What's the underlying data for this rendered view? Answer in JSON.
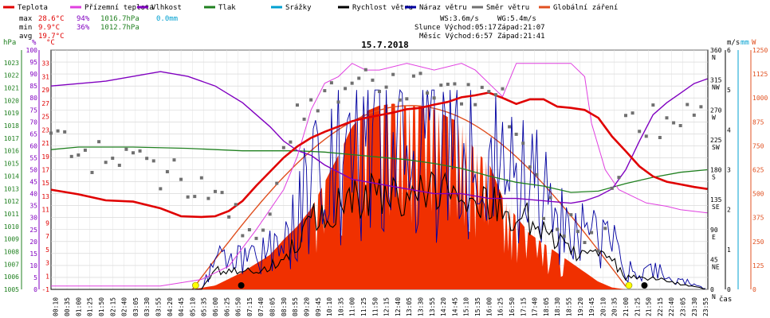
{
  "legend": [
    {
      "key": "teplota",
      "label": "Teplota",
      "color": "#e00000"
    },
    {
      "key": "pocitova",
      "label": "Přízemní teplota",
      "color": "#e040e0"
    },
    {
      "key": "vlhkost",
      "label": "Vlhkost",
      "color": "#8000c0"
    },
    {
      "key": "tlak",
      "label": "Tlak",
      "color": "#208020"
    },
    {
      "key": "srazky",
      "label": "Srážky",
      "color": "#00a0d0"
    },
    {
      "key": "rychlost",
      "label": "Rychlost větru",
      "color": "#000000"
    },
    {
      "key": "naraz",
      "label": "Náraz větru",
      "color": "#0000a0"
    },
    {
      "key": "smer",
      "label": "Směr větru",
      "color": "#707070"
    },
    {
      "key": "zareni",
      "label": "Globální záření",
      "color": "#e05020"
    }
  ],
  "stats": {
    "max": {
      "label": "max",
      "temp": "28.6°C",
      "hum": "94%",
      "press": "1016.7hPa",
      "rain": "0.0mm"
    },
    "min": {
      "label": "min",
      "temp": "9.9°C",
      "hum": "36%",
      "press": "1012.7hPa"
    },
    "avg": {
      "label": "avg",
      "temp": "19.7°C"
    }
  },
  "info": {
    "ws": "WS:3.6m/s",
    "wg": "WG:5.4m/s",
    "sun_row": "Slunce Východ:05:17",
    "sun_set": "Západ:21:07",
    "moon_row": "Měsíc Východ:6:57",
    "moon_set": "Západ:21:41"
  },
  "title": "15.7.2018",
  "axis_units": {
    "hpa": "hPa",
    "pct": "%",
    "degc": "°C",
    "ms": "m/s",
    "mm": "mm",
    "w": "W",
    "cas": "čas"
  },
  "chart_data": {
    "type": "line",
    "title": "15.7.2018",
    "x_ticks": [
      "00:10",
      "00:35",
      "01:00",
      "01:25",
      "01:50",
      "02:15",
      "02:40",
      "03:05",
      "03:30",
      "03:55",
      "04:20",
      "04:45",
      "05:10",
      "05:35",
      "06:00",
      "06:25",
      "06:50",
      "07:15",
      "07:40",
      "08:05",
      "08:30",
      "08:55",
      "09:20",
      "09:45",
      "10:10",
      "10:35",
      "11:00",
      "11:25",
      "11:50",
      "12:15",
      "12:40",
      "13:05",
      "13:30",
      "13:55",
      "14:20",
      "14:45",
      "15:10",
      "15:35",
      "16:00",
      "16:25",
      "16:50",
      "17:15",
      "17:40",
      "18:05",
      "18:30",
      "18:55",
      "19:20",
      "19:45",
      "20:10",
      "20:35",
      "21:00",
      "21:25",
      "21:50",
      "22:15",
      "22:40",
      "23:05",
      "23:30",
      "23:55"
    ],
    "x_label": "čas",
    "axes": {
      "pressure_hpa": {
        "range": [
          1005,
          1024
        ],
        "ticks": [
          1005,
          1006,
          1007,
          1008,
          1009,
          1010,
          1011,
          1012,
          1013,
          1014,
          1015,
          1016,
          1017,
          1018,
          1019,
          1020,
          1021,
          1022,
          1023
        ]
      },
      "humidity_pct": {
        "range": [
          0,
          100
        ],
        "ticks": [
          0,
          5,
          10,
          15,
          20,
          25,
          30,
          35,
          40,
          45,
          50,
          55,
          60,
          65,
          70,
          75,
          80,
          85,
          90,
          95,
          100
        ]
      },
      "temperature_c": {
        "range": [
          -1,
          35
        ],
        "ticks": [
          -1,
          1,
          3,
          5,
          7,
          9,
          11,
          13,
          15,
          17,
          19,
          21,
          23,
          25,
          27,
          29,
          31,
          33
        ]
      },
      "wind_ms": {
        "range": [
          0,
          6
        ],
        "ticks": [
          0,
          1,
          2,
          3,
          4,
          5,
          6
        ]
      },
      "direction_deg": {
        "range": [
          0,
          360
        ],
        "ticks": [
          0,
          45,
          90,
          135,
          180,
          225,
          270,
          315,
          360
        ],
        "tick_labels": [
          "N",
          "NE",
          "E",
          "SE",
          "S",
          "SW",
          "W",
          "NW",
          "N"
        ]
      },
      "radiation_w": {
        "range": [
          0,
          1250
        ],
        "ticks": [
          0,
          125,
          250,
          375,
          500,
          625,
          750,
          875,
          1000,
          1125,
          1250
        ]
      }
    },
    "series": [
      {
        "name": "Teplota",
        "axis": "temperature_c",
        "x": [
          "00:00",
          "01:00",
          "02:00",
          "03:00",
          "04:00",
          "04:45",
          "05:30",
          "06:00",
          "06:30",
          "07:00",
          "07:30",
          "08:00",
          "08:30",
          "09:00",
          "09:30",
          "10:00",
          "10:30",
          "11:00",
          "11:30",
          "12:00",
          "12:30",
          "13:00",
          "13:30",
          "14:00",
          "14:30",
          "15:00",
          "15:30",
          "16:00",
          "16:30",
          "17:00",
          "17:30",
          "18:00",
          "18:30",
          "19:00",
          "19:30",
          "20:00",
          "20:30",
          "21:00",
          "21:30",
          "22:00",
          "22:30",
          "23:00",
          "23:30",
          "23:59"
        ],
        "y": [
          14,
          13.3,
          12.4,
          12.2,
          11.2,
          10,
          9.9,
          10,
          10.8,
          12.3,
          14.6,
          16.7,
          18.8,
          20.5,
          21.8,
          22.7,
          23.5,
          24.3,
          24.8,
          25.2,
          25.6,
          26.1,
          26.3,
          26.8,
          27.2,
          27.9,
          28.2,
          28.6,
          27.8,
          26.9,
          27.6,
          27.6,
          26.5,
          26.3,
          26,
          24.8,
          22,
          19.8,
          17.5,
          16,
          15.2,
          14.8,
          14.4,
          14.1
        ]
      },
      {
        "name": "Přízemní teplota",
        "axis": "temperature_c",
        "x": [
          "00:00",
          "04:00",
          "05:30",
          "06:30",
          "07:30",
          "08:30",
          "09:00",
          "09:30",
          "10:00",
          "10:30",
          "11:00",
          "11:30",
          "12:00",
          "13:00",
          "14:00",
          "15:00",
          "15:30",
          "16:00",
          "16:30",
          "17:00",
          "17:30",
          "18:00",
          "18:30",
          "19:00",
          "19:30",
          "19:45",
          "20:15",
          "20:45",
          "21:15",
          "21:45",
          "22:30",
          "23:00",
          "23:59"
        ],
        "y": [
          -0.5,
          -0.5,
          0.5,
          2.5,
          8,
          14,
          19,
          26,
          30,
          31,
          33,
          32,
          32,
          33,
          32,
          33,
          32,
          30,
          28,
          33,
          33,
          33,
          33,
          33,
          31,
          24,
          17,
          14,
          13,
          12,
          11.5,
          11,
          10.5
        ]
      },
      {
        "name": "Vlhkost",
        "axis": "humidity_pct",
        "x": [
          "00:00",
          "02:00",
          "04:00",
          "05:00",
          "06:00",
          "07:00",
          "08:00",
          "08:30",
          "09:00",
          "09:30",
          "10:00",
          "11:00",
          "12:00",
          "13:00",
          "14:00",
          "15:00",
          "16:00",
          "17:00",
          "18:00",
          "19:00",
          "19:30",
          "20:00",
          "20:30",
          "21:00",
          "21:30",
          "22:00",
          "22:30",
          "23:00",
          "23:30",
          "23:59"
        ],
        "y": [
          85,
          87,
          91,
          89,
          85,
          78,
          68,
          62,
          58,
          56,
          52,
          46,
          44,
          42,
          40,
          40,
          38,
          38,
          37,
          36,
          37,
          39,
          42,
          50,
          62,
          73,
          78,
          82,
          86,
          88
        ]
      },
      {
        "name": "Tlak",
        "axis": "pressure_hpa",
        "x": [
          "00:00",
          "01:00",
          "03:00",
          "05:00",
          "07:00",
          "09:00",
          "10:00",
          "11:00",
          "12:00",
          "13:00",
          "14:00",
          "15:00",
          "16:00",
          "17:00",
          "18:00",
          "19:00",
          "20:00",
          "21:00",
          "22:00",
          "23:00",
          "23:59"
        ],
        "y": [
          1016.1,
          1016.3,
          1016.3,
          1016.2,
          1016.0,
          1016.0,
          1015.9,
          1015.7,
          1015.5,
          1015.3,
          1015.0,
          1014.6,
          1014.0,
          1013.5,
          1013.2,
          1012.7,
          1012.8,
          1013.4,
          1013.9,
          1014.3,
          1014.5
        ]
      },
      {
        "name": "Globální záření",
        "axis": "radiation_w",
        "x": [
          "05:10",
          "06:00",
          "07:00",
          "08:00",
          "08:30",
          "09:00",
          "09:30",
          "10:00",
          "10:30",
          "11:00",
          "11:30",
          "12:00",
          "12:30",
          "13:00",
          "13:30",
          "14:00",
          "14:30",
          "15:00",
          "15:30",
          "16:00",
          "16:30",
          "17:00",
          "17:30",
          "18:00",
          "18:30",
          "19:00",
          "19:30",
          "20:00",
          "20:30",
          "21:00"
        ],
        "y": [
          0,
          20,
          90,
          180,
          260,
          330,
          420,
          560,
          700,
          850,
          930,
          960,
          970,
          960,
          960,
          940,
          900,
          870,
          720,
          660,
          480,
          380,
          290,
          240,
          190,
          140,
          90,
          40,
          10,
          0
        ]
      },
      {
        "name": "Rychlost větru",
        "axis": "wind_ms",
        "x": [
          "00:00",
          "05:30",
          "06:00",
          "07:30",
          "08:30",
          "09:00",
          "09:30",
          "10:00",
          "11:00",
          "12:00",
          "13:00",
          "14:00",
          "15:00",
          "16:00",
          "17:00",
          "18:00",
          "19:00",
          "20:00",
          "20:30",
          "21:00",
          "22:00",
          "23:59"
        ],
        "y": [
          0,
          0,
          0.5,
          0.5,
          0.8,
          1.2,
          1.8,
          2.1,
          2.3,
          2.6,
          2.6,
          2.6,
          2.5,
          2.3,
          2,
          1.6,
          1.0,
          0.9,
          0.8,
          0.3,
          0.3,
          0
        ]
      },
      {
        "name": "Směr větru",
        "axis": "direction_deg"
      }
    ]
  }
}
